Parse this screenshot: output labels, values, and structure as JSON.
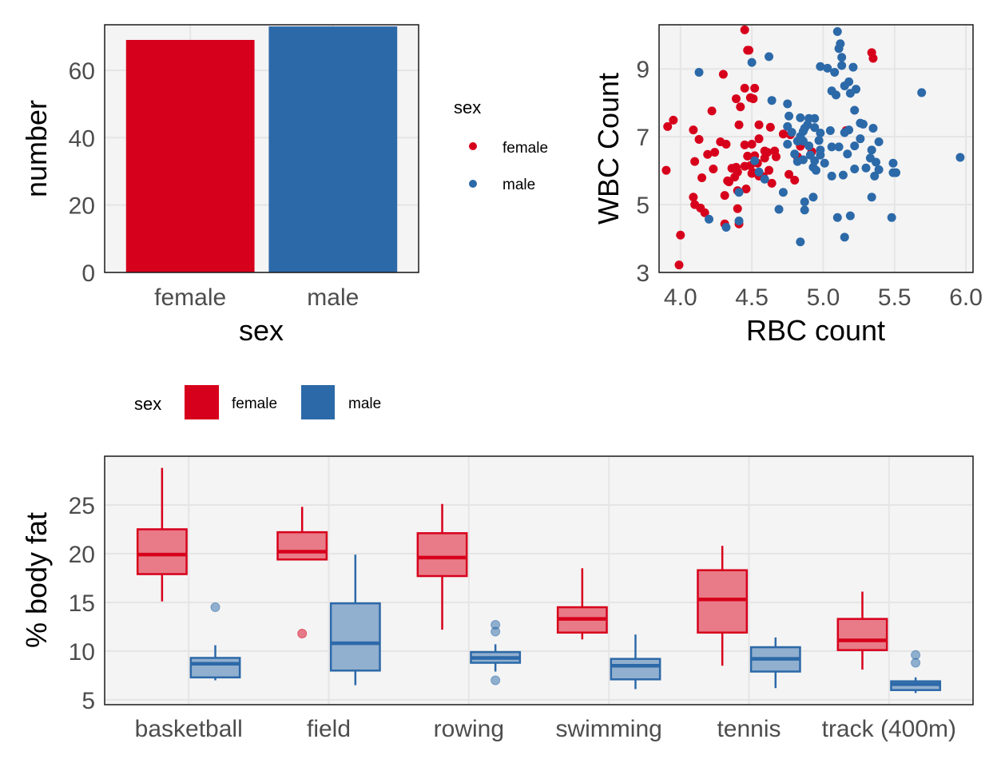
{
  "colors": {
    "female": "#D7001C",
    "male": "#2C69A8",
    "panel_bg": "#F4F4F4",
    "grid": "#E5E5E5",
    "female_fill": "#E87B87",
    "male_fill": "#91AFCE"
  },
  "chart_data": [
    {
      "id": "bar",
      "type": "bar",
      "title": "",
      "xlabel": "sex",
      "ylabel": "number",
      "categories": [
        "female",
        "male"
      ],
      "values": [
        69,
        73
      ],
      "ylim": [
        0,
        73.5
      ],
      "yticks": [
        "0",
        "20",
        "40",
        "60"
      ],
      "ytick_values": [
        0,
        20,
        40,
        60
      ],
      "grid": true,
      "legend": {
        "title": "sex",
        "position": "below-left",
        "entries": [
          "female",
          "male"
        ]
      }
    },
    {
      "id": "scatter",
      "type": "scatter",
      "title": "",
      "xlabel": "RBC count",
      "ylabel": "WBC Count",
      "xlim": [
        3.85,
        6.05
      ],
      "ylim": [
        3,
        10.3
      ],
      "xticks": [
        "4.0",
        "4.5",
        "5.0",
        "5.5",
        "6.0"
      ],
      "xtick_values": [
        4.0,
        4.5,
        5.0,
        5.5,
        6.0
      ],
      "yticks": [
        "3",
        "5",
        "7",
        "9"
      ],
      "ytick_values": [
        3,
        5,
        7,
        9
      ],
      "grid": true,
      "legend": {
        "title": "sex",
        "position": "left",
        "entries": [
          "female",
          "male"
        ]
      },
      "series": [
        {
          "name": "female",
          "points": [
            [
              3.9,
              6.01
            ],
            [
              3.95,
              7.49
            ],
            [
              3.91,
              7.3
            ],
            [
              3.99,
              3.22
            ],
            [
              4.0,
              4.1
            ],
            [
              4.09,
              5.22
            ],
            [
              4.1,
              6.27
            ],
            [
              4.09,
              7.2
            ],
            [
              4.13,
              6.92
            ],
            [
              4.1,
              5.0
            ],
            [
              4.14,
              4.9
            ],
            [
              4.17,
              4.76
            ],
            [
              4.15,
              5.79
            ],
            [
              4.19,
              6.48
            ],
            [
              4.23,
              6.05
            ],
            [
              4.22,
              7.76
            ],
            [
              4.3,
              8.84
            ],
            [
              4.32,
              6.78
            ],
            [
              4.24,
              6.54
            ],
            [
              4.28,
              6.85
            ],
            [
              4.31,
              5.27
            ],
            [
              4.34,
              5.67
            ],
            [
              4.31,
              4.43
            ],
            [
              4.41,
              4.43
            ],
            [
              4.4,
              4.88
            ],
            [
              4.36,
              6.07
            ],
            [
              4.39,
              6.1
            ],
            [
              4.4,
              5.41
            ],
            [
              4.38,
              5.81
            ],
            [
              4.41,
              7.35
            ],
            [
              4.39,
              8.12
            ],
            [
              4.45,
              8.43
            ],
            [
              4.42,
              7.88
            ],
            [
              4.45,
              6.76
            ],
            [
              4.47,
              6.43
            ],
            [
              4.45,
              6.13
            ],
            [
              4.49,
              6.15
            ],
            [
              4.51,
              5.94
            ],
            [
              4.54,
              6.22
            ],
            [
              4.46,
              5.46
            ],
            [
              4.5,
              5.92
            ],
            [
              4.55,
              7.35
            ],
            [
              4.52,
              8.43
            ],
            [
              4.51,
              8.12
            ],
            [
              4.47,
              9.55
            ],
            [
              4.48,
              9.55
            ],
            [
              4.45,
              10.15
            ],
            [
              4.5,
              6.78
            ],
            [
              4.55,
              6.94
            ],
            [
              4.52,
              6.44
            ],
            [
              4.59,
              6.37
            ],
            [
              4.59,
              6.58
            ],
            [
              4.63,
              7.28
            ],
            [
              4.62,
              6.01
            ],
            [
              4.64,
              5.63
            ],
            [
              4.61,
              6.54
            ],
            [
              4.72,
              7.08
            ],
            [
              4.58,
              5.83
            ],
            [
              4.77,
              7.06
            ],
            [
              4.8,
              5.72
            ],
            [
              4.82,
              6.41
            ],
            [
              4.84,
              6.72
            ],
            [
              4.76,
              5.89
            ],
            [
              4.82,
              6.39
            ],
            [
              4.92,
              6.56
            ],
            [
              5.16,
              7.18
            ],
            [
              5.34,
              9.48
            ],
            [
              5.35,
              9.31
            ],
            [
              4.49,
              8.15
            ],
            [
              4.4,
              5.96
            ],
            [
              4.66,
              6.58
            ],
            [
              4.67,
              6.41
            ],
            [
              4.33,
              5.7
            ],
            [
              4.55,
              5.84
            ]
          ]
        },
        {
          "name": "male",
          "points": [
            [
              4.13,
              8.9
            ],
            [
              4.5,
              9.19
            ],
            [
              4.2,
              4.57
            ],
            [
              4.32,
              4.33
            ],
            [
              4.41,
              4.52
            ],
            [
              4.41,
              5.36
            ],
            [
              4.52,
              6.29
            ],
            [
              4.55,
              5.96
            ],
            [
              4.59,
              5.75
            ],
            [
              4.69,
              4.86
            ],
            [
              4.72,
              5.36
            ],
            [
              4.87,
              4.84
            ],
            [
              4.86,
              6.32
            ],
            [
              4.87,
              5.08
            ],
            [
              4.93,
              5.22
            ],
            [
              4.84,
              3.9
            ],
            [
              4.93,
              6.1
            ],
            [
              4.97,
              6.89
            ],
            [
              4.98,
              6.46
            ],
            [
              4.98,
              9.07
            ],
            [
              5.03,
              9.02
            ],
            [
              5.06,
              8.35
            ],
            [
              5.09,
              8.23
            ],
            [
              5.15,
              8.5
            ],
            [
              5.19,
              8.28
            ],
            [
              5.22,
              7.78
            ],
            [
              5.21,
              9.05
            ],
            [
              5.18,
              8.62
            ],
            [
              5.08,
              8.9
            ],
            [
              5.15,
              7.12
            ],
            [
              5.11,
              9.6
            ],
            [
              5.13,
              9.34
            ],
            [
              5.13,
              9.1
            ],
            [
              5.12,
              9.74
            ],
            [
              5.1,
              10.1
            ],
            [
              4.84,
              7.56
            ],
            [
              4.82,
              6.87
            ],
            [
              4.8,
              6.49
            ],
            [
              4.87,
              7.25
            ],
            [
              4.9,
              7.54
            ],
            [
              4.94,
              7.54
            ],
            [
              4.89,
              7.35
            ],
            [
              4.86,
              7.16
            ],
            [
              4.75,
              7.3
            ],
            [
              4.78,
              7.13
            ],
            [
              4.75,
              6.78
            ],
            [
              4.82,
              6.27
            ],
            [
              4.9,
              6.73
            ],
            [
              4.91,
              6.46
            ],
            [
              4.94,
              6.29
            ],
            [
              4.95,
              6.01
            ],
            [
              4.98,
              6.61
            ],
            [
              5.05,
              7.18
            ],
            [
              5.06,
              6.7
            ],
            [
              5.11,
              6.7
            ],
            [
              5.17,
              6.49
            ],
            [
              5.22,
              6.73
            ],
            [
              5.18,
              7.2
            ],
            [
              5.26,
              7.4
            ],
            [
              5.33,
              6.37
            ],
            [
              5.35,
              7.25
            ],
            [
              5.34,
              6.61
            ],
            [
              5.37,
              6.25
            ],
            [
              5.36,
              5.84
            ],
            [
              5.39,
              6.85
            ],
            [
              5.49,
              6.22
            ],
            [
              5.49,
              5.94
            ],
            [
              5.34,
              5.22
            ],
            [
              5.48,
              4.62
            ],
            [
              5.19,
              4.67
            ],
            [
              5.1,
              4.62
            ],
            [
              5.15,
              4.04
            ],
            [
              5.23,
              8.4
            ],
            [
              5.28,
              7.37
            ],
            [
              5.26,
              6.94
            ],
            [
              4.86,
              6.87
            ],
            [
              4.94,
              7.27
            ],
            [
              4.98,
              7.11
            ],
            [
              5.06,
              5.84
            ],
            [
              5.14,
              5.87
            ],
            [
              5.22,
              6.05
            ],
            [
              5.3,
              6.08
            ],
            [
              5.39,
              6.03
            ],
            [
              5.51,
              5.94
            ],
            [
              5.69,
              8.3
            ],
            [
              5.96,
              6.39
            ],
            [
              4.84,
              7.01
            ],
            [
              4.75,
              7.97
            ],
            [
              4.64,
              8.07
            ],
            [
              4.62,
              9.36
            ],
            [
              4.76,
              7.61
            ],
            [
              5.01,
              6.22
            ]
          ]
        }
      ]
    },
    {
      "id": "boxplot",
      "type": "boxplot",
      "title": "",
      "xlabel": "",
      "ylabel": "% body fat",
      "categories": [
        "basketball",
        "field",
        "rowing",
        "swimming",
        "tennis",
        "track (400m)"
      ],
      "ylim": [
        4.5,
        30
      ],
      "yticks": [
        "5",
        "10",
        "15",
        "20",
        "25"
      ],
      "ytick_values": [
        5,
        10,
        15,
        20,
        25
      ],
      "grid": true,
      "series": [
        {
          "name": "female",
          "boxes": [
            {
              "lower": 15.1,
              "q1": 17.9,
              "median": 19.9,
              "q3": 22.5,
              "upper": 28.8,
              "outliers": []
            },
            {
              "lower": 19.3,
              "q1": 19.4,
              "median": 20.2,
              "q3": 22.2,
              "upper": 24.8,
              "outliers": [
                11.8
              ]
            },
            {
              "lower": 12.2,
              "q1": 17.7,
              "median": 19.6,
              "q3": 22.1,
              "upper": 25.1,
              "outliers": []
            },
            {
              "lower": 11.2,
              "q1": 11.9,
              "median": 13.3,
              "q3": 14.5,
              "upper": 18.5,
              "outliers": []
            },
            {
              "lower": 8.5,
              "q1": 11.9,
              "median": 15.3,
              "q3": 18.3,
              "upper": 20.8,
              "outliers": []
            },
            {
              "lower": 8.1,
              "q1": 10.1,
              "median": 11.1,
              "q3": 13.3,
              "upper": 16.1,
              "outliers": []
            }
          ]
        },
        {
          "name": "male",
          "boxes": [
            {
              "lower": 7.0,
              "q1": 7.3,
              "median": 8.7,
              "q3": 9.3,
              "upper": 10.6,
              "outliers": [
                14.5
              ]
            },
            {
              "lower": 6.5,
              "q1": 8.0,
              "median": 10.8,
              "q3": 14.9,
              "upper": 19.9,
              "outliers": []
            },
            {
              "lower": 7.9,
              "q1": 8.8,
              "median": 9.3,
              "q3": 9.9,
              "upper": 10.7,
              "outliers": [
                12.7,
                12.0,
                7.0
              ]
            },
            {
              "lower": 6.1,
              "q1": 7.1,
              "median": 8.5,
              "q3": 9.2,
              "upper": 11.7,
              "outliers": []
            },
            {
              "lower": 6.2,
              "q1": 7.9,
              "median": 9.2,
              "q3": 10.4,
              "upper": 11.4,
              "outliers": []
            },
            {
              "lower": 5.7,
              "q1": 6.0,
              "median": 6.6,
              "q3": 6.9,
              "upper": 7.3,
              "outliers": [
                9.6,
                8.8
              ]
            }
          ]
        }
      ]
    }
  ]
}
